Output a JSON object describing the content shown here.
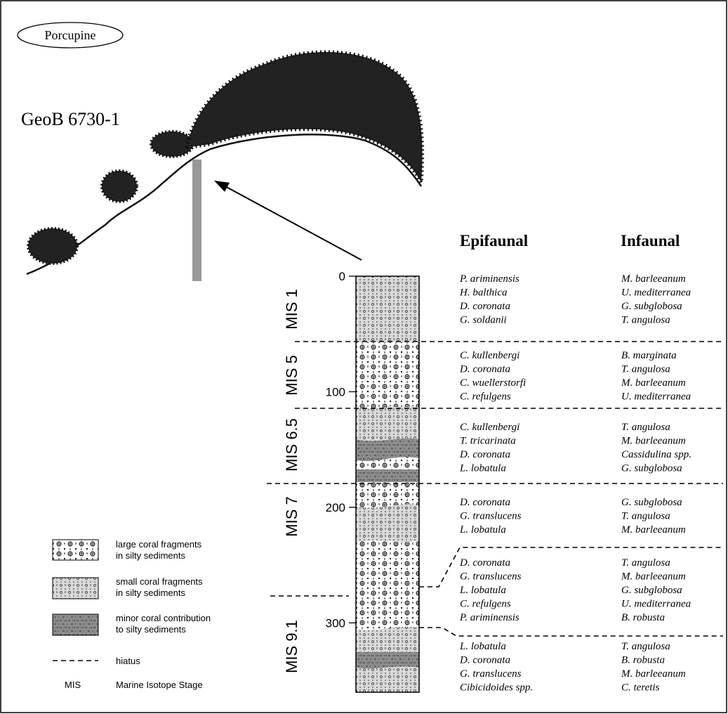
{
  "title": "Porcupine",
  "core_label": "GeoB 6730-1",
  "depth_axis": {
    "lim": [
      0,
      360
    ],
    "ticks": [
      0,
      100,
      200,
      300
    ]
  },
  "columns": [
    "Epifaunal",
    "Infaunal"
  ],
  "mis_labels": [
    "MIS 1",
    "MIS 5",
    "MIS 6.5",
    "MIS 7",
    "MIS 9.1"
  ],
  "assemblages": [
    {
      "epifaunal": [
        "P. ariminensis",
        "H. balthica",
        "D. coronata",
        "G. soldanii"
      ],
      "infaunal": [
        "M. barleeanum",
        "U. mediterranea",
        "G. subglobosa",
        "T. angulosa"
      ]
    },
    {
      "epifaunal": [
        "C. kullenbergi",
        "D. coronata",
        "C. wuellerstorfi",
        "C. refulgens"
      ],
      "infaunal": [
        "B. marginata",
        "T. angulosa",
        "M. barleeanum",
        "U. mediterranea"
      ]
    },
    {
      "epifaunal": [
        "C. kullenbergi",
        "T. tricarinata",
        "D. coronata",
        "L. lobatula"
      ],
      "infaunal": [
        "T. angulosa",
        "M. barleeanum",
        "Cassidulina spp.",
        "G. subglobosa"
      ]
    },
    {
      "epifaunal": [
        "D. coronata",
        "G. translucens",
        "L. lobatula"
      ],
      "infaunal": [
        "G. subglobosa",
        "T. angulosa",
        "M. barleeanum"
      ]
    },
    {
      "epifaunal": [
        "D. coronata",
        "G. translucens",
        "L. lobatula",
        "C. refulgens",
        "P. ariminensis"
      ],
      "infaunal": [
        "T. angulosa",
        "M. barleeanum",
        "G. subglobosa",
        "U. mediterranea",
        "B. robusta"
      ]
    },
    {
      "epifaunal": [
        "L. lobatula",
        "D. coronata",
        "G. translucens",
        "Cibicidoides spp."
      ],
      "infaunal": [
        "T. angulosa",
        "B. robusta",
        "M. barleeanum",
        "C. teretis"
      ]
    }
  ],
  "legend": [
    {
      "lines": [
        "large coral fragments",
        "in silty sediments"
      ]
    },
    {
      "lines": [
        "small coral fragments",
        "in silty sediments"
      ]
    },
    {
      "lines": [
        "minor coral contribution",
        "to silty sediments"
      ]
    },
    {
      "lines": [
        "hiatus"
      ]
    },
    {
      "key": "MIS",
      "lines": [
        "Marine Isotope Stage"
      ]
    }
  ]
}
